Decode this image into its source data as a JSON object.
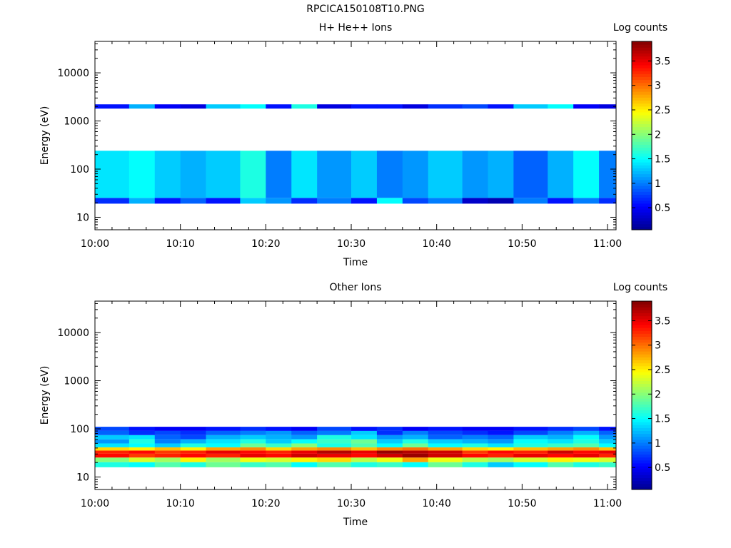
{
  "page": {
    "title": "RPCICA150108T10.PNG"
  },
  "colormap": [
    "#00008f",
    "#0000ff",
    "#0080ff",
    "#00ffff",
    "#80ff80",
    "#ffff00",
    "#ff8000",
    "#ff0000",
    "#800000"
  ],
  "chart_data": [
    {
      "type": "heatmap",
      "title": "H+ He++ Ions",
      "xlabel": "Time",
      "ylabel": "Energy (eV)",
      "y_scale": "log",
      "xlim": [
        "10:00",
        "11:01"
      ],
      "ylim": [
        5.5,
        45000
      ],
      "x_ticks": [
        "10:00",
        "10:10",
        "10:20",
        "10:30",
        "10:40",
        "10:50",
        "11:00"
      ],
      "y_ticks": [
        "10",
        "100",
        "1000",
        "10000"
      ],
      "colorbar": {
        "label": "Log counts",
        "range": [
          0.05,
          3.9
        ],
        "ticks": [
          "0.5",
          "1",
          "1.5",
          "2",
          "2.5",
          "3",
          "3.5"
        ]
      },
      "time_bins": [
        "10:00",
        "10:04",
        "10:07",
        "10:10",
        "10:13",
        "10:17",
        "10:20",
        "10:23",
        "10:26",
        "10:30",
        "10:33",
        "10:36",
        "10:39",
        "10:43",
        "10:46",
        "10:49",
        "10:53",
        "10:56",
        "10:59",
        "11:01"
      ],
      "energy_bins_ev": [
        22,
        29,
        2000
      ],
      "values": [
        [
          0.7,
          1.4,
          0.6
        ],
        [
          1.2,
          1.5,
          1.2
        ],
        [
          0.6,
          1.3,
          0.5
        ],
        [
          0.9,
          1.2,
          0.4
        ],
        [
          0.6,
          1.3,
          1.3
        ],
        [
          1.3,
          1.6,
          1.5
        ],
        [
          1.1,
          1.0,
          0.6
        ],
        [
          0.7,
          1.4,
          1.6
        ],
        [
          1.0,
          1.1,
          0.4
        ],
        [
          0.6,
          1.3,
          0.6
        ],
        [
          1.5,
          1.0,
          0.6
        ],
        [
          0.8,
          1.1,
          0.4
        ],
        [
          1.0,
          1.3,
          0.7
        ],
        [
          0.3,
          1.1,
          0.8
        ],
        [
          0.2,
          1.2,
          0.6
        ],
        [
          1.0,
          0.9,
          1.3
        ],
        [
          0.6,
          1.2,
          1.5
        ],
        [
          1.0,
          1.5,
          0.5
        ],
        [
          0.7,
          1.0,
          0.4
        ]
      ]
    },
    {
      "type": "heatmap",
      "title": "Other Ions",
      "xlabel": "Time",
      "ylabel": "Energy (eV)",
      "y_scale": "log",
      "xlim": [
        "10:00",
        "11:01"
      ],
      "ylim": [
        5.5,
        45000
      ],
      "x_ticks": [
        "10:00",
        "10:10",
        "10:20",
        "10:30",
        "10:40",
        "10:50",
        "11:00"
      ],
      "y_ticks": [
        "10",
        "100",
        "1000",
        "10000"
      ],
      "colorbar": {
        "label": "Log counts",
        "range": [
          0.05,
          3.9
        ],
        "ticks": [
          "0.5",
          "1",
          "1.5",
          "2",
          "2.5",
          "3",
          "3.5"
        ]
      },
      "time_bins": [
        "10:00",
        "10:04",
        "10:07",
        "10:10",
        "10:13",
        "10:17",
        "10:20",
        "10:23",
        "10:26",
        "10:30",
        "10:33",
        "10:36",
        "10:39",
        "10:43",
        "10:46",
        "10:49",
        "10:53",
        "10:56",
        "10:59",
        "11:01"
      ],
      "energy_bins_ev": [
        18,
        23,
        28,
        33,
        38,
        45,
        55,
        67,
        82,
        100
      ],
      "values": [
        [
          1.6,
          2.0,
          3.4,
          3.3,
          2.6,
          1.4,
          1.1,
          1.3,
          0.9,
          0.8
        ],
        [
          1.5,
          2.3,
          3.2,
          3.4,
          2.5,
          1.5,
          1.6,
          1.4,
          0.7,
          0.6
        ],
        [
          1.8,
          2.1,
          3.3,
          3.2,
          2.7,
          1.3,
          1.0,
          0.9,
          0.8,
          0.5
        ],
        [
          1.6,
          2.5,
          3.4,
          3.3,
          2.5,
          1.6,
          1.2,
          0.8,
          0.7,
          0.5
        ],
        [
          1.9,
          2.1,
          3.3,
          3.5,
          2.8,
          1.5,
          1.4,
          1.2,
          0.9,
          0.6
        ],
        [
          1.7,
          2.4,
          3.5,
          3.4,
          2.9,
          1.9,
          1.6,
          1.3,
          1.0,
          0.7
        ],
        [
          1.8,
          2.3,
          3.4,
          3.3,
          2.6,
          1.7,
          1.3,
          1.2,
          1.1,
          0.6
        ],
        [
          1.5,
          2.5,
          3.6,
          3.5,
          2.8,
          2.0,
          1.5,
          1.1,
          0.9,
          0.5
        ],
        [
          1.8,
          2.6,
          3.5,
          3.7,
          2.9,
          1.6,
          1.7,
          1.6,
          1.0,
          0.8
        ],
        [
          1.6,
          2.2,
          3.4,
          3.5,
          2.7,
          1.8,
          1.9,
          1.4,
          1.3,
          0.6
        ],
        [
          1.7,
          2.4,
          3.6,
          3.8,
          2.9,
          1.5,
          1.3,
          1.1,
          0.7,
          0.7
        ],
        [
          1.5,
          2.8,
          3.8,
          3.7,
          3.0,
          1.9,
          1.6,
          1.2,
          1.0,
          0.5
        ],
        [
          1.9,
          2.4,
          3.6,
          3.6,
          2.8,
          1.5,
          1.3,
          0.9,
          0.8,
          0.6
        ],
        [
          1.6,
          2.2,
          3.4,
          3.2,
          2.6,
          1.6,
          1.2,
          1.0,
          0.7,
          0.5
        ],
        [
          1.3,
          2.1,
          3.3,
          3.4,
          2.5,
          1.4,
          1.1,
          0.9,
          0.6,
          0.5
        ],
        [
          1.5,
          2.3,
          3.5,
          3.3,
          2.7,
          1.6,
          1.5,
          1.3,
          0.8,
          0.6
        ],
        [
          1.8,
          2.5,
          3.4,
          3.6,
          2.8,
          1.7,
          1.4,
          1.2,
          1.0,
          0.7
        ],
        [
          1.6,
          2.4,
          3.5,
          3.4,
          2.9,
          1.8,
          1.6,
          1.5,
          1.2,
          0.8
        ],
        [
          1.7,
          2.3,
          3.3,
          3.5,
          2.7,
          1.5,
          1.3,
          1.1,
          0.9,
          0.6
        ]
      ]
    }
  ]
}
